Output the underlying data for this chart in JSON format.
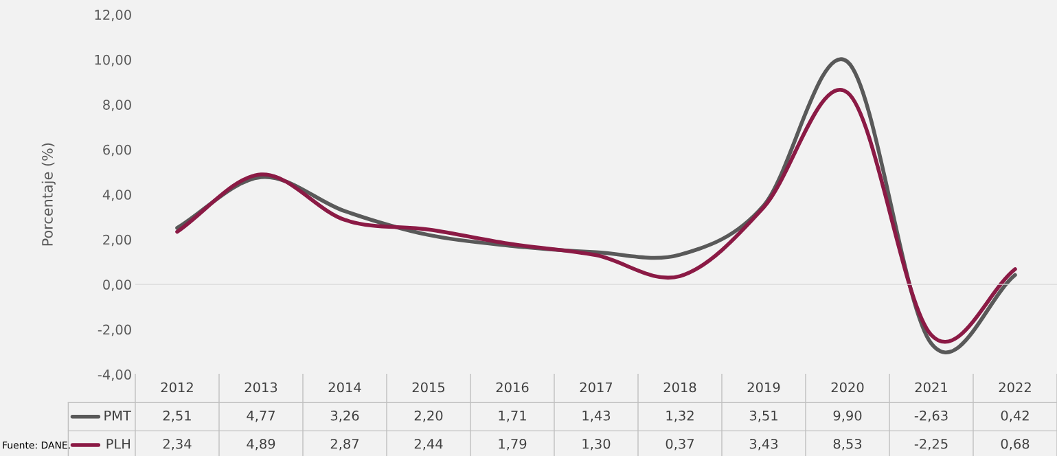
{
  "chart_data": {
    "type": "line",
    "ylabel": "Porcentaje (%)",
    "categories": [
      "2012",
      "2013",
      "2014",
      "2015",
      "2016",
      "2017",
      "2018",
      "2019",
      "2020",
      "2021",
      "2022"
    ],
    "series": [
      {
        "name": "PMT",
        "color": "#595959",
        "values": [
          2.51,
          4.77,
          3.26,
          2.2,
          1.71,
          1.43,
          1.32,
          3.51,
          9.9,
          -2.63,
          0.42
        ],
        "value_labels": [
          "2,51",
          "4,77",
          "3,26",
          "2,20",
          "1,71",
          "1,43",
          "1,32",
          "3,51",
          "9,90",
          "-2,63",
          "0,42"
        ]
      },
      {
        "name": "PLH",
        "color": "#8b1a45",
        "values": [
          2.34,
          4.89,
          2.87,
          2.44,
          1.79,
          1.3,
          0.37,
          3.43,
          8.53,
          -2.25,
          0.68
        ],
        "value_labels": [
          "2,34",
          "4,89",
          "2,87",
          "2,44",
          "1,79",
          "1,30",
          "0,37",
          "3,43",
          "8,53",
          "-2,25",
          "0,68"
        ]
      }
    ],
    "ylim": [
      -4,
      12
    ],
    "yticks": [
      {
        "value": -4,
        "label": "-4,00"
      },
      {
        "value": -2,
        "label": "-2,00"
      },
      {
        "value": 0,
        "label": "0,00"
      },
      {
        "value": 2,
        "label": "2,00"
      },
      {
        "value": 4,
        "label": "4,00"
      },
      {
        "value": 6,
        "label": "6,00"
      },
      {
        "value": 8,
        "label": "8,00"
      },
      {
        "value": 10,
        "label": "10,00"
      },
      {
        "value": 12,
        "label": "12,00"
      }
    ],
    "ref_lines": [
      {
        "axis": "y",
        "value": 0,
        "color": "#d9d9d9"
      }
    ],
    "legend": "bottom",
    "grid": false,
    "marker": "none",
    "line_style": "solid",
    "annotations": [
      "Fuente: DANE."
    ]
  }
}
